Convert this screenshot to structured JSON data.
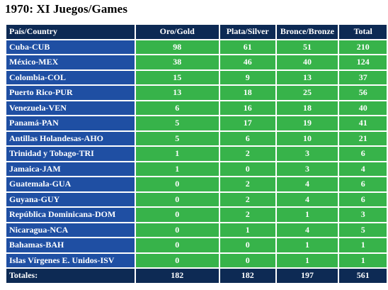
{
  "title": "1970: XI Juegos/Games",
  "headers": [
    "País/Country",
    "Oro/Gold",
    "Plata/Silver",
    "Bronce/Bronze",
    "Total"
  ],
  "rows": [
    [
      "Cuba-CUB",
      "98",
      "61",
      "51",
      "210"
    ],
    [
      "México-MEX",
      "38",
      "46",
      "40",
      "124"
    ],
    [
      "Colombia-COL",
      "15",
      "9",
      "13",
      "37"
    ],
    [
      "Puerto Rico-PUR",
      "13",
      "18",
      "25",
      "56"
    ],
    [
      "Venezuela-VEN",
      "6",
      "16",
      "18",
      "40"
    ],
    [
      "Panamá-PAN",
      "5",
      "17",
      "19",
      "41"
    ],
    [
      "Antillas Holandesas-AHO",
      "5",
      "6",
      "10",
      "21"
    ],
    [
      "Trinidad y Tobago-TRI",
      "1",
      "2",
      "3",
      "6"
    ],
    [
      "Jamaica-JAM",
      "1",
      "0",
      "3",
      "4"
    ],
    [
      "Guatemala-GUA",
      "0",
      "2",
      "4",
      "6"
    ],
    [
      "Guyana-GUY",
      "0",
      "2",
      "4",
      "6"
    ],
    [
      "República Dominicana-DOM",
      "0",
      "2",
      "1",
      "3"
    ],
    [
      "Nicaragua-NCA",
      "0",
      "1",
      "4",
      "5"
    ],
    [
      "Bahamas-BAH",
      "0",
      "0",
      "1",
      "1"
    ],
    [
      "Islas Vírgenes E. Unidos-ISV",
      "0",
      "0",
      "1",
      "1"
    ]
  ],
  "totals": [
    "Totales:",
    "182",
    "182",
    "197",
    "561"
  ],
  "colors": {
    "header_bg": "#0d2a54",
    "country_bg": "#1f4fa3",
    "value_bg": "#37b34a",
    "text": "#ffffff"
  }
}
